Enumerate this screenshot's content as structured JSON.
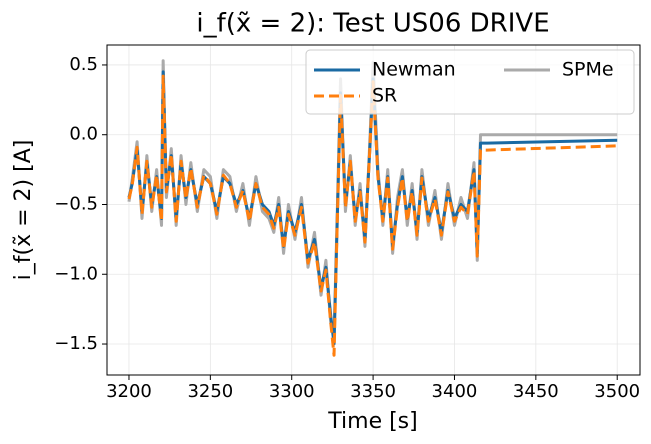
{
  "chart_data": {
    "type": "line",
    "title": "i_f(x̃ = 2): Test US06 DRIVE",
    "xlabel": "Time [s]",
    "ylabel": "i_f(x̃ = 2) [A]",
    "x": [
      3200,
      3202,
      3205,
      3208,
      3211,
      3214,
      3217,
      3220,
      3221,
      3223,
      3226,
      3229,
      3232,
      3235,
      3238,
      3242,
      3246,
      3250,
      3254,
      3258,
      3262,
      3266,
      3270,
      3274,
      3278,
      3282,
      3286,
      3289,
      3292,
      3295,
      3298,
      3302,
      3306,
      3310,
      3314,
      3318,
      3321,
      3324,
      3326,
      3328,
      3330,
      3333,
      3336,
      3339,
      3342,
      3345,
      3348,
      3350,
      3353,
      3356,
      3359,
      3362,
      3365,
      3368,
      3371,
      3374,
      3377,
      3380,
      3384,
      3388,
      3392,
      3396,
      3400,
      3404,
      3408,
      3412,
      3414,
      3416,
      3420,
      3500
    ],
    "series": [
      {
        "name": "SPMe",
        "color": "#aaaaaa",
        "linestyle": "solid",
        "values": [
          -0.48,
          -0.32,
          -0.05,
          -0.6,
          -0.15,
          -0.55,
          -0.25,
          -0.65,
          0.53,
          -0.45,
          -0.1,
          -0.65,
          -0.15,
          -0.5,
          -0.2,
          -0.55,
          -0.25,
          -0.3,
          -0.6,
          -0.25,
          -0.3,
          -0.55,
          -0.35,
          -0.65,
          -0.3,
          -0.55,
          -0.6,
          -0.7,
          -0.45,
          -0.85,
          -0.5,
          -0.75,
          -0.45,
          -0.95,
          -0.7,
          -1.15,
          -0.9,
          -1.35,
          -1.45,
          -0.55,
          0.4,
          -0.55,
          -0.15,
          -0.65,
          -0.35,
          -0.8,
          -0.05,
          0.52,
          -0.25,
          -0.65,
          -0.25,
          -0.85,
          -0.45,
          -0.25,
          -0.65,
          -0.35,
          -0.75,
          -0.25,
          -0.65,
          -0.4,
          -0.75,
          -0.35,
          -0.65,
          -0.45,
          -0.6,
          -0.2,
          -0.9,
          0.0,
          0.0,
          0.0
        ]
      },
      {
        "name": "Newman",
        "color": "#1a6aa3",
        "linestyle": "solid",
        "values": [
          -0.45,
          -0.35,
          -0.1,
          -0.55,
          -0.2,
          -0.5,
          -0.3,
          -0.6,
          0.45,
          -0.4,
          -0.15,
          -0.6,
          -0.2,
          -0.45,
          -0.25,
          -0.5,
          -0.3,
          -0.35,
          -0.55,
          -0.3,
          -0.35,
          -0.5,
          -0.4,
          -0.6,
          -0.35,
          -0.5,
          -0.55,
          -0.65,
          -0.5,
          -0.8,
          -0.55,
          -0.7,
          -0.5,
          -0.9,
          -0.75,
          -1.1,
          -0.95,
          -1.3,
          -1.5,
          -0.6,
          0.3,
          -0.5,
          -0.2,
          -0.6,
          -0.4,
          -0.75,
          -0.1,
          0.4,
          -0.3,
          -0.6,
          -0.3,
          -0.8,
          -0.5,
          -0.3,
          -0.6,
          -0.4,
          -0.7,
          -0.3,
          -0.6,
          -0.45,
          -0.7,
          -0.4,
          -0.6,
          -0.5,
          -0.55,
          -0.25,
          -0.85,
          -0.06,
          -0.06,
          -0.04
        ]
      },
      {
        "name": "SR",
        "color": "#ff7f0e",
        "linestyle": "dashed",
        "values": [
          -0.46,
          -0.36,
          -0.09,
          -0.57,
          -0.19,
          -0.52,
          -0.29,
          -0.62,
          0.42,
          -0.41,
          -0.14,
          -0.62,
          -0.19,
          -0.46,
          -0.24,
          -0.52,
          -0.29,
          -0.35,
          -0.57,
          -0.29,
          -0.35,
          -0.52,
          -0.4,
          -0.62,
          -0.35,
          -0.52,
          -0.57,
          -0.67,
          -0.52,
          -0.82,
          -0.57,
          -0.72,
          -0.52,
          -0.92,
          -0.77,
          -1.12,
          -0.97,
          -1.35,
          -1.58,
          -0.62,
          0.28,
          -0.52,
          -0.19,
          -0.62,
          -0.41,
          -0.77,
          -0.1,
          0.38,
          -0.31,
          -0.62,
          -0.31,
          -0.82,
          -0.52,
          -0.31,
          -0.62,
          -0.41,
          -0.72,
          -0.31,
          -0.62,
          -0.46,
          -0.72,
          -0.41,
          -0.62,
          -0.52,
          -0.57,
          -0.26,
          -0.87,
          -0.11,
          -0.11,
          -0.08
        ]
      }
    ],
    "xlim": [
      3186.5,
      3514
    ],
    "ylim": [
      -1.722,
      0.643
    ],
    "xticks": [
      3200,
      3250,
      3300,
      3350,
      3400,
      3450,
      3500
    ],
    "yticks": [
      -1.5,
      -1.0,
      -0.5,
      0.0,
      0.5
    ],
    "ytick_labels": [
      "−1.5",
      "−1.0",
      "−0.5",
      "0.0",
      "0.5"
    ],
    "grid": true,
    "legend": "upper right",
    "legend_order": [
      "Newman",
      "SR",
      "SPMe"
    ]
  }
}
